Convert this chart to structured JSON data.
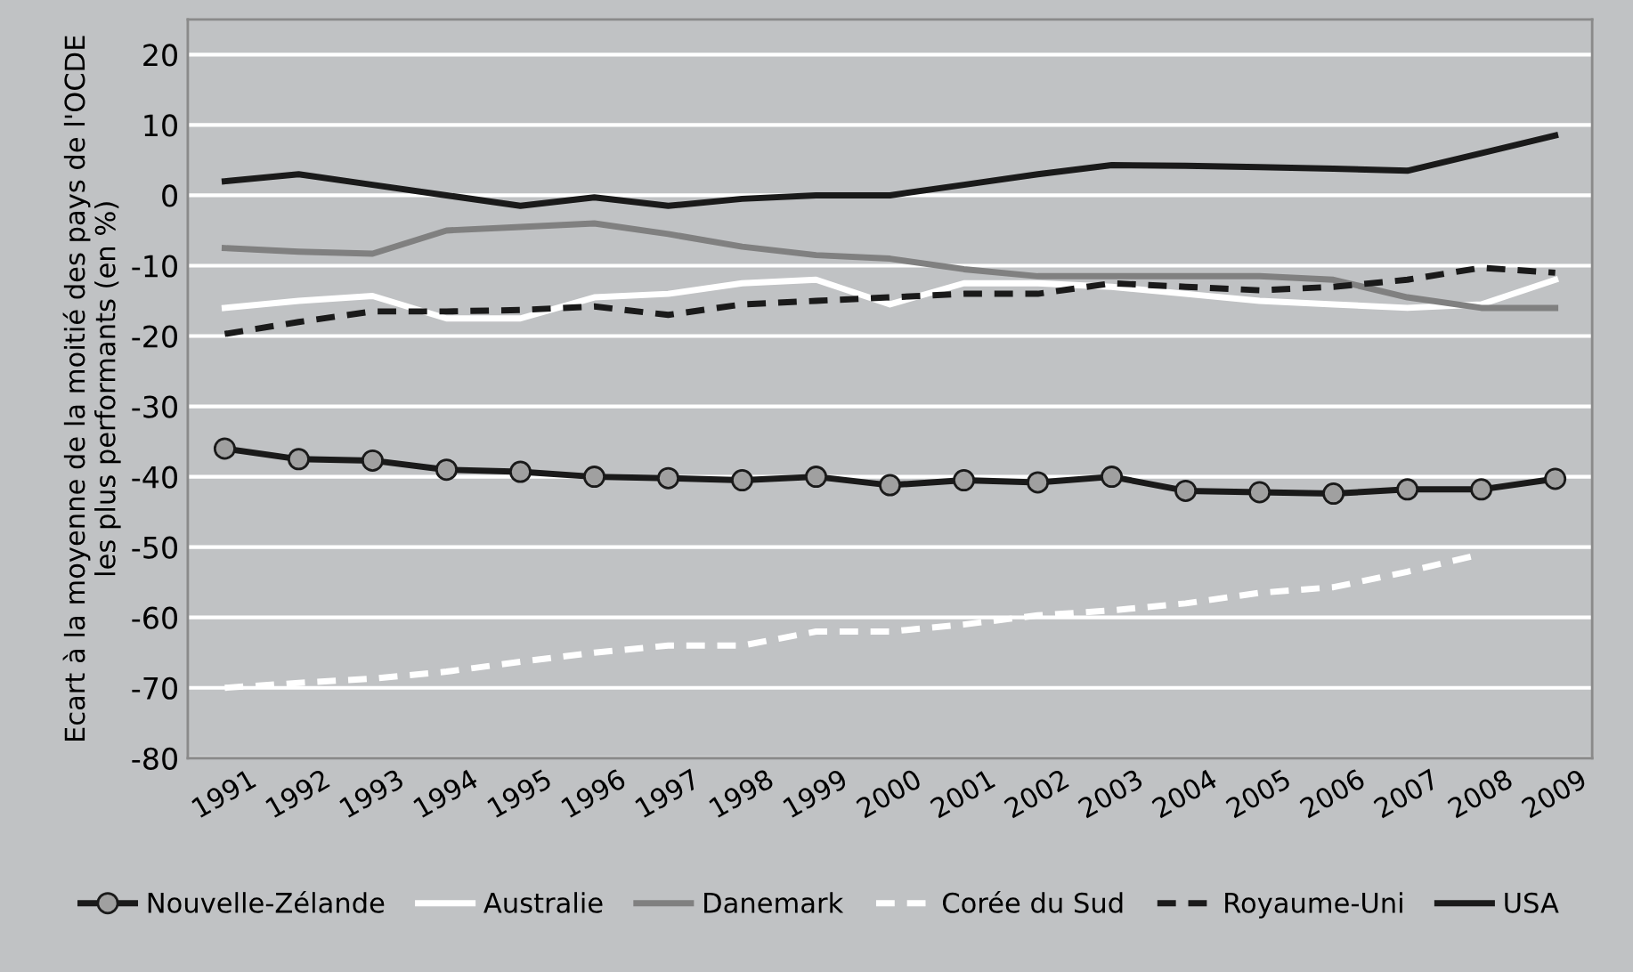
{
  "chart_data": {
    "type": "line",
    "ylabel": "Ecart à la moyenne de la moitié des pays de l'OCDE\nles plus performants (en %)",
    "categories": [
      "1991",
      "1992",
      "1993",
      "1994",
      "1995",
      "1996",
      "1997",
      "1998",
      "1999",
      "2000",
      "2001",
      "2002",
      "2003",
      "2004",
      "2005",
      "2006",
      "2007",
      "2008",
      "2009"
    ],
    "ylim": [
      -80,
      25
    ],
    "yticks": [
      -80,
      -70,
      -60,
      -50,
      -40,
      -30,
      -20,
      -10,
      0,
      10,
      20
    ],
    "grid": "y",
    "legend": "bottom",
    "series": [
      {
        "name": "Nouvelle-Zélande",
        "color": "#1a1a1a",
        "marker": "circle",
        "line_style": "solid",
        "values": [
          -36,
          -37.5,
          -37.7,
          -39,
          -39.3,
          -40,
          -40.2,
          -40.5,
          -40,
          -41.2,
          -40.5,
          -40.8,
          -40,
          -42,
          -42.2,
          -42.4,
          -41.8,
          -41.8,
          -40.3
        ]
      },
      {
        "name": "Australie",
        "color": "#ffffff",
        "line_style": "solid",
        "values": [
          -16,
          -15,
          -14.3,
          -17.5,
          -17.5,
          -14.5,
          -14,
          -12.5,
          -12,
          -15.5,
          -12.5,
          -12.5,
          -13,
          -14,
          -15,
          -15.5,
          -16,
          -15.5,
          -12
        ]
      },
      {
        "name": "Danemark",
        "color": "#808080",
        "line_style": "solid",
        "values": [
          -7.5,
          -8,
          -8.3,
          -5,
          -4.5,
          -4,
          -5.5,
          -7.3,
          -8.5,
          -9,
          -10.5,
          -11.5,
          -11.5,
          -11.5,
          -11.5,
          -12,
          -14.5,
          -16,
          -16
        ]
      },
      {
        "name": "Corée du Sud",
        "color": "#ffffff",
        "line_style": "dashed",
        "values": [
          -70,
          -69.3,
          -68.7,
          -67.7,
          -66.3,
          -65,
          -64,
          -64,
          -62,
          -62,
          -61,
          -59.7,
          -59,
          -58,
          -56.5,
          -55.7,
          -53.5,
          -51,
          null
        ]
      },
      {
        "name": "Royaume-Uni",
        "color": "#1a1a1a",
        "line_style": "dashed",
        "values": [
          -19.7,
          -18,
          -16.5,
          -16.5,
          -16.3,
          -15.8,
          -17,
          -15.5,
          -15,
          -14.5,
          -14,
          -14,
          -12.5,
          -13,
          -13.5,
          -13,
          -12,
          -10.3,
          -11
        ]
      },
      {
        "name": "USA",
        "color": "#1a1a1a",
        "line_style": "solid",
        "values": [
          2,
          3,
          1.5,
          0,
          -1.5,
          -0.3,
          -1.5,
          -0.5,
          0,
          0,
          1.5,
          3,
          4.3,
          4.2,
          4,
          3.8,
          3.5,
          6,
          8.5
        ]
      }
    ]
  }
}
